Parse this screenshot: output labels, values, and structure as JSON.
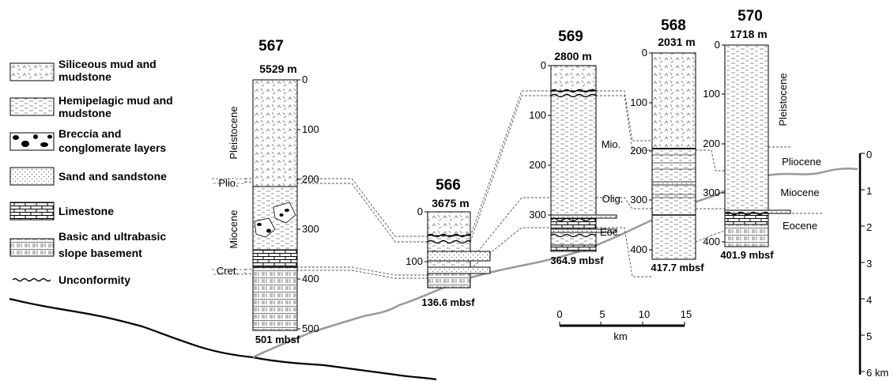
{
  "legend": {
    "items": [
      {
        "pattern": "siliceous",
        "line1": "Siliceous mud and",
        "line2": "mudstone"
      },
      {
        "pattern": "hemipelagic",
        "line1": "Hemipelagic mud and",
        "line2": "mudstone"
      },
      {
        "pattern": "breccia",
        "line1": "Breccia and",
        "line2": "conglomerate layers"
      },
      {
        "pattern": "sand",
        "line1": "Sand and sandstone",
        "line2": ""
      },
      {
        "pattern": "limestone",
        "line1": "Limestone",
        "line2": ""
      },
      {
        "pattern": "basement",
        "line1": "Basic and ultrabasic",
        "line2": "slope basement"
      },
      {
        "pattern": "unconformity",
        "line1": "Unconformity",
        "line2": ""
      }
    ]
  },
  "sites": [
    {
      "id": "567",
      "water_depth": "5529 m",
      "bottom": "501 mbsf",
      "ticks": [
        "0",
        "100",
        "200",
        "300",
        "400",
        "500"
      ]
    },
    {
      "id": "566",
      "water_depth": "3675 m",
      "bottom": "136.6 mbsf",
      "ticks": [
        "0",
        "100"
      ]
    },
    {
      "id": "569",
      "water_depth": "2800 m",
      "bottom": "364.9 mbsf",
      "ticks": [
        "0",
        "100",
        "200",
        "300"
      ]
    },
    {
      "id": "568",
      "water_depth": "2031 m",
      "bottom": "417.7 mbsf",
      "ticks": [
        "0",
        "100",
        "200",
        "300",
        "400"
      ]
    },
    {
      "id": "570",
      "water_depth": "1718 m",
      "bottom": "401.9 mbsf",
      "ticks": [
        "0",
        "100",
        "200",
        "300",
        "400"
      ]
    }
  ],
  "ages": {
    "s567": [
      "Pleistocene",
      "Plio.",
      "Miocene",
      "Cret."
    ],
    "s569": [
      "Mio.",
      "Olig.",
      "Eoc."
    ],
    "s570": [
      "Pleistocene",
      "Pliocene",
      "Miocene",
      "Eocene"
    ]
  },
  "scale_bar": {
    "ticks": [
      "0",
      "5",
      "10",
      "15"
    ],
    "unit": "km"
  },
  "depth_axis": {
    "ticks": [
      "0",
      "1",
      "2",
      "3",
      "4",
      "5",
      "6 km"
    ]
  }
}
